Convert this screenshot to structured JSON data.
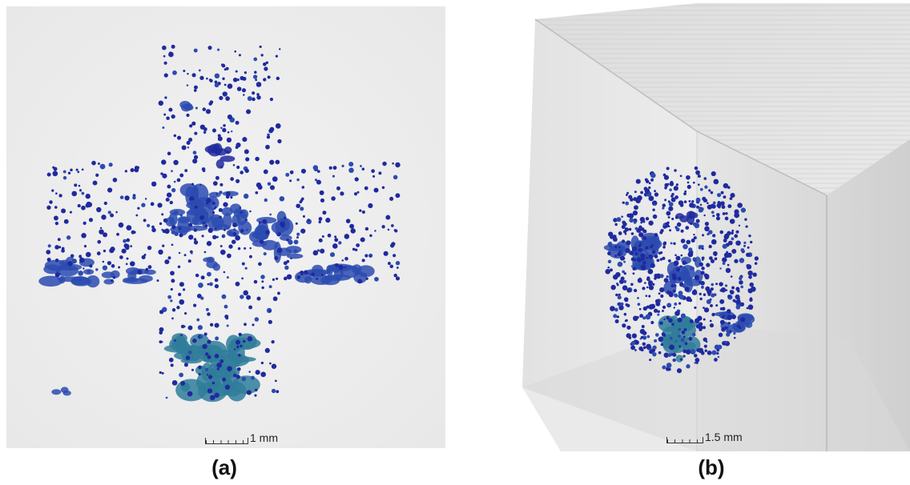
{
  "panel_a": {
    "scale_label": "1 mm",
    "caption": "(a)"
  },
  "panel_b": {
    "scale_label": "1.5 mm",
    "caption": "(b)"
  },
  "colors": {
    "pore_dark": "#1f2a9e",
    "pore_mid": "#2c4bb0",
    "pore_teal": "#2f7d9a",
    "background_a": "#efefef",
    "block_face": "#e4e4e4"
  }
}
